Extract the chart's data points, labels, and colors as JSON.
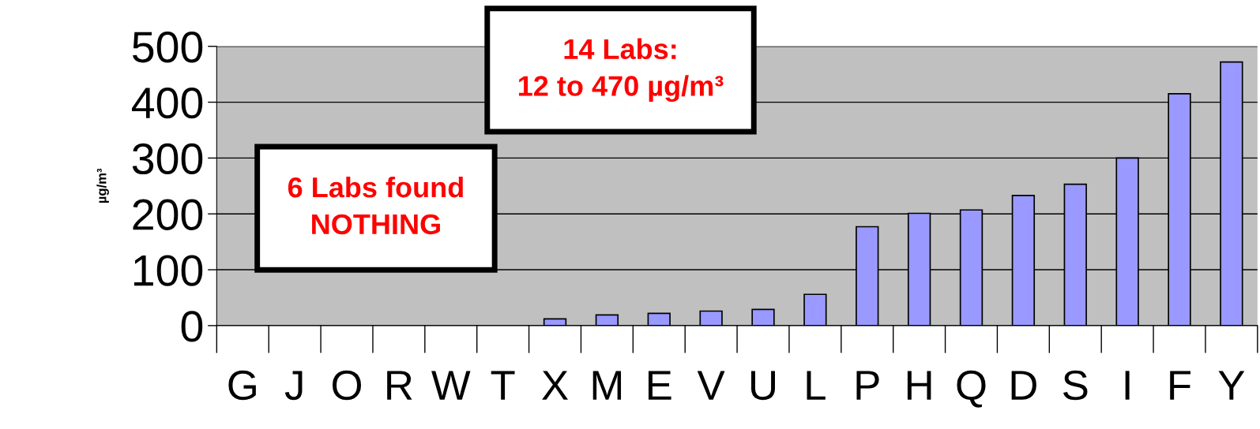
{
  "chart_data": {
    "type": "bar",
    "ylabel": "µg/m³",
    "categories": [
      "G",
      "J",
      "O",
      "R",
      "W",
      "T",
      "X",
      "M",
      "E",
      "V",
      "U",
      "L",
      "P",
      "H",
      "Q",
      "D",
      "S",
      "I",
      "F",
      "Y"
    ],
    "values": [
      0,
      0,
      0,
      0,
      0,
      0,
      12,
      19,
      22,
      26,
      29,
      56,
      177,
      201,
      207,
      233,
      253,
      300,
      415,
      472
    ],
    "color": "#9999ff",
    "ylim": [
      0,
      500
    ],
    "yticks": [
      0,
      100,
      200,
      300,
      400,
      500
    ],
    "grid": "y",
    "annotations": [
      "14 Labs:\n12 to 470 µg/m³",
      "6 Labs found\nNOTHING"
    ]
  }
}
